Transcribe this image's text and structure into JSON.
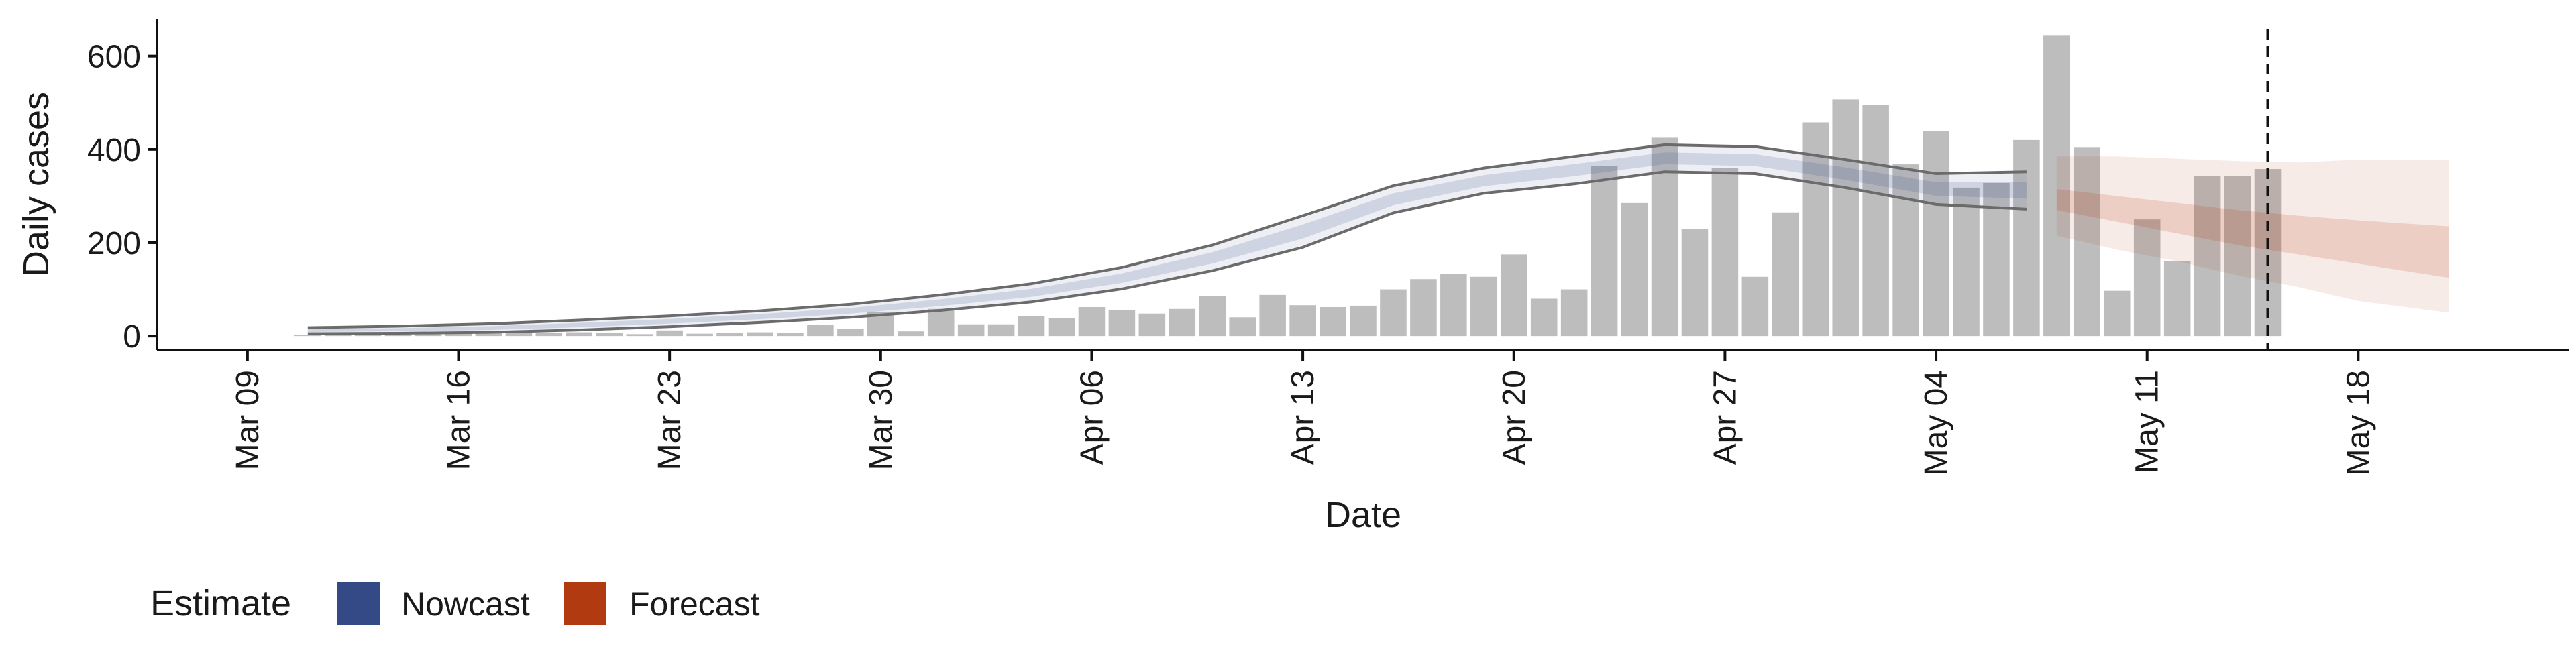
{
  "chart_data": {
    "type": "bar",
    "title": "",
    "xlabel": "Date",
    "ylabel": "Daily cases",
    "ylim": [
      -30,
      680
    ],
    "y_ticks": [
      0,
      200,
      400,
      600
    ],
    "x_range": [
      "2020-03-06",
      "2020-05-25"
    ],
    "x_tick_dates": [
      "2020-03-09",
      "2020-03-16",
      "2020-03-23",
      "2020-03-30",
      "2020-04-06",
      "2020-04-13",
      "2020-04-20",
      "2020-04-27",
      "2020-05-04",
      "2020-05-11",
      "2020-05-18"
    ],
    "x_tick_labels": [
      "Mar 09",
      "Mar 16",
      "Mar 23",
      "Mar 30",
      "Apr 06",
      "Apr 13",
      "Apr 20",
      "Apr 27",
      "May 04",
      "May 11",
      "May 18"
    ],
    "bar_color": "#bdbdbd",
    "reported_cases": {
      "name": "",
      "dates": [
        "2020-03-11",
        "2020-03-12",
        "2020-03-13",
        "2020-03-14",
        "2020-03-15",
        "2020-03-16",
        "2020-03-17",
        "2020-03-18",
        "2020-03-19",
        "2020-03-20",
        "2020-03-21",
        "2020-03-22",
        "2020-03-23",
        "2020-03-24",
        "2020-03-25",
        "2020-03-26",
        "2020-03-27",
        "2020-03-28",
        "2020-03-29",
        "2020-03-30",
        "2020-03-31",
        "2020-04-01",
        "2020-04-02",
        "2020-04-03",
        "2020-04-04",
        "2020-04-05",
        "2020-04-06",
        "2020-04-07",
        "2020-04-08",
        "2020-04-09",
        "2020-04-10",
        "2020-04-11",
        "2020-04-12",
        "2020-04-13",
        "2020-04-14",
        "2020-04-15",
        "2020-04-16",
        "2020-04-17",
        "2020-04-18",
        "2020-04-19",
        "2020-04-20",
        "2020-04-21",
        "2020-04-22",
        "2020-04-23",
        "2020-04-24",
        "2020-04-25",
        "2020-04-26",
        "2020-04-27",
        "2020-04-28",
        "2020-04-29",
        "2020-04-30",
        "2020-05-01",
        "2020-05-02",
        "2020-05-03",
        "2020-05-04",
        "2020-05-05",
        "2020-05-06",
        "2020-05-07",
        "2020-05-08",
        "2020-05-09",
        "2020-05-10",
        "2020-05-11",
        "2020-05-12",
        "2020-05-13",
        "2020-05-14",
        "2020-05-15"
      ],
      "values": [
        3,
        4,
        5,
        6,
        8,
        9,
        10,
        6,
        7,
        8,
        6,
        4,
        12,
        5,
        7,
        8,
        6,
        24,
        15,
        52,
        10,
        58,
        25,
        25,
        43,
        38,
        62,
        55,
        48,
        58,
        85,
        40,
        88,
        66,
        62,
        65,
        100,
        122,
        133,
        127,
        175,
        80,
        100,
        365,
        285,
        425,
        230,
        360,
        127,
        265,
        458,
        507,
        495,
        368,
        440,
        318,
        328,
        420,
        645,
        405,
        97,
        250,
        160,
        343,
        343,
        358
      ]
    },
    "nowcast": {
      "name": "Nowcast",
      "color": "#344a87",
      "dates": [
        "2020-03-11",
        "2020-03-14",
        "2020-03-17",
        "2020-03-20",
        "2020-03-23",
        "2020-03-26",
        "2020-03-29",
        "2020-04-01",
        "2020-04-04",
        "2020-04-07",
        "2020-04-10",
        "2020-04-13",
        "2020-04-16",
        "2020-04-19",
        "2020-04-22",
        "2020-04-25",
        "2020-04-28",
        "2020-05-01",
        "2020-05-04",
        "2020-05-07"
      ],
      "upper": [
        18,
        21,
        26,
        34,
        43,
        54,
        68,
        88,
        112,
        147,
        195,
        258,
        322,
        360,
        385,
        410,
        406,
        378,
        348,
        352
      ],
      "lower": [
        5,
        6,
        8,
        13,
        20,
        29,
        40,
        55,
        73,
        101,
        140,
        190,
        264,
        306,
        326,
        352,
        348,
        318,
        282,
        272
      ]
    },
    "forecast": {
      "name": "Forecast",
      "color": "#b23a10",
      "dates": [
        "2020-05-08",
        "2020-05-10",
        "2020-05-12",
        "2020-05-14",
        "2020-05-16",
        "2020-05-18",
        "2020-05-21"
      ],
      "outer_upper": [
        385,
        385,
        380,
        375,
        372,
        378,
        378
      ],
      "outer_lower": [
        215,
        185,
        160,
        130,
        105,
        75,
        50
      ],
      "inner_upper": [
        315,
        300,
        285,
        270,
        258,
        248,
        235
      ],
      "inner_lower": [
        270,
        245,
        220,
        195,
        175,
        155,
        125
      ]
    },
    "vline_date": "2020-05-15",
    "grid": false,
    "legend": {
      "position": "bottom-left",
      "title": "Estimate",
      "entries": [
        "Nowcast",
        "Forecast"
      ]
    }
  }
}
